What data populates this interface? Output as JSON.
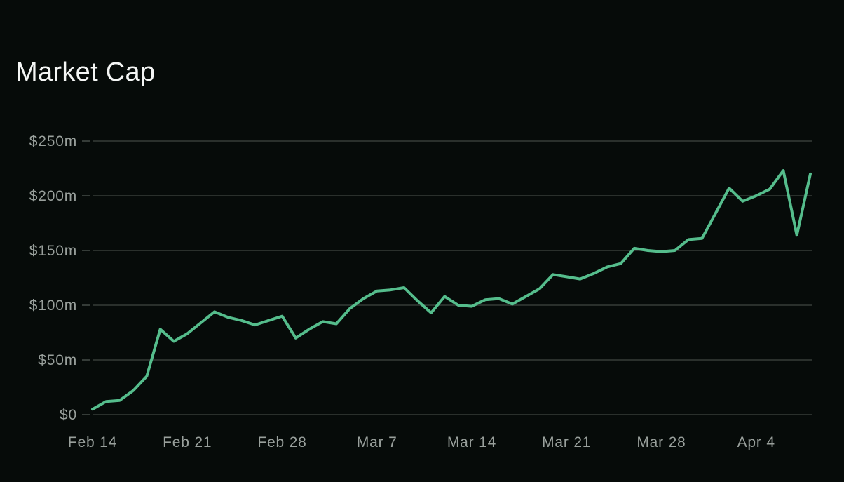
{
  "page": {
    "colors": {
      "background": "#060b09",
      "title": "#f4f6f5",
      "axis_label": "#99a09c",
      "grid_line": "#363c39",
      "axis_tick": "#454c48",
      "series_line": "#55bd8c"
    }
  },
  "chart_data": {
    "type": "line",
    "title": "Market Cap",
    "xlabel": "",
    "ylabel": "",
    "unit": "USD millions",
    "ylim": [
      0,
      250
    ],
    "grid": "horizontal",
    "legend": "none",
    "y_ticks": [
      {
        "value": 0,
        "label": "$0"
      },
      {
        "value": 50,
        "label": "$50m"
      },
      {
        "value": 100,
        "label": "$100m"
      },
      {
        "value": 150,
        "label": "$150m"
      },
      {
        "value": 200,
        "label": "$200m"
      },
      {
        "value": 250,
        "label": "$250m"
      }
    ],
    "x_ticks": [
      {
        "day_index": 0,
        "label": "Feb 14"
      },
      {
        "day_index": 7,
        "label": "Feb 21"
      },
      {
        "day_index": 14,
        "label": "Feb 28"
      },
      {
        "day_index": 21,
        "label": "Mar 7"
      },
      {
        "day_index": 28,
        "label": "Mar 14"
      },
      {
        "day_index": 35,
        "label": "Mar 21"
      },
      {
        "day_index": 42,
        "label": "Mar 28"
      },
      {
        "day_index": 49,
        "label": "Apr 4"
      }
    ],
    "series": [
      {
        "name": "Market Cap",
        "color": "#55bd8c",
        "dates": [
          "Feb 14",
          "Feb 15",
          "Feb 16",
          "Feb 17",
          "Feb 18",
          "Feb 19",
          "Feb 20",
          "Feb 21",
          "Feb 22",
          "Feb 23",
          "Feb 24",
          "Feb 25",
          "Feb 26",
          "Feb 27",
          "Feb 28",
          "Mar 1",
          "Mar 2",
          "Mar 3",
          "Mar 4",
          "Mar 5",
          "Mar 6",
          "Mar 7",
          "Mar 8",
          "Mar 9",
          "Mar 10",
          "Mar 11",
          "Mar 12",
          "Mar 13",
          "Mar 14",
          "Mar 15",
          "Mar 16",
          "Mar 17",
          "Mar 18",
          "Mar 19",
          "Mar 20",
          "Mar 21",
          "Mar 22",
          "Mar 23",
          "Mar 24",
          "Mar 25",
          "Mar 26",
          "Mar 27",
          "Mar 28",
          "Mar 29",
          "Mar 30",
          "Mar 31",
          "Apr 1",
          "Apr 2",
          "Apr 3",
          "Apr 4",
          "Apr 5",
          "Apr 6",
          "Apr 7",
          "Apr 8"
        ],
        "values_musd": [
          5,
          12,
          13,
          22,
          35,
          78,
          67,
          74,
          84,
          94,
          89,
          86,
          82,
          86,
          90,
          70,
          78,
          85,
          83,
          97,
          106,
          113,
          114,
          116,
          104,
          93,
          108,
          100,
          99,
          105,
          106,
          101,
          108,
          115,
          128,
          126,
          124,
          129,
          135,
          138,
          152,
          150,
          149,
          150,
          160,
          161,
          184,
          207,
          195,
          200,
          206,
          223,
          164,
          220
        ]
      }
    ]
  }
}
